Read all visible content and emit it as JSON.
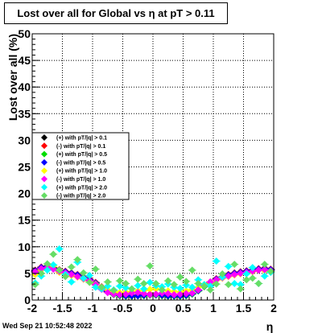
{
  "title": "Lost over all for Global vs    η at pT > 0.11",
  "timestamp": "Wed Sep 21 10:52:48 2022",
  "chart_data": {
    "type": "scatter",
    "title": "Lost over all for Global vs    η at pT > 0.11",
    "xlabel": "η",
    "ylabel": "Lost over all (%)",
    "xlim": [
      -2,
      2
    ],
    "ylim": [
      0,
      50
    ],
    "grid": true,
    "legend_position": "left-middle",
    "x_ticks": [
      "-2",
      "-1.5",
      "-1",
      "-0.5",
      "0",
      "0.5",
      "1",
      "1.5",
      "2"
    ],
    "y_ticks": [
      "0",
      "5",
      "10",
      "15",
      "20",
      "25",
      "30",
      "35",
      "40",
      "45",
      "50"
    ],
    "x": [
      -1.95,
      -1.85,
      -1.75,
      -1.65,
      -1.55,
      -1.45,
      -1.35,
      -1.25,
      -1.15,
      -1.05,
      -0.95,
      -0.85,
      -0.75,
      -0.65,
      -0.55,
      -0.45,
      -0.35,
      -0.25,
      -0.15,
      -0.05,
      0.05,
      0.15,
      0.25,
      0.35,
      0.45,
      0.55,
      0.65,
      0.75,
      0.85,
      0.95,
      1.05,
      1.15,
      1.25,
      1.35,
      1.45,
      1.55,
      1.65,
      1.75,
      1.85,
      1.95
    ],
    "series": [
      {
        "name": "(+) with pT/|q| > 0.1",
        "color": "#000000",
        "marker": "diamond",
        "values": [
          5.4,
          6.0,
          6.2,
          5.9,
          5.6,
          5.3,
          5.0,
          4.6,
          4.2,
          3.8,
          3.2,
          2.4,
          1.6,
          1.1,
          0.9,
          0.8,
          0.8,
          0.8,
          0.9,
          1.0,
          1.0,
          0.9,
          0.8,
          0.8,
          0.8,
          0.9,
          1.2,
          1.8,
          2.6,
          3.3,
          3.9,
          4.3,
          4.7,
          5.0,
          5.2,
          5.4,
          5.6,
          5.8,
          5.9,
          5.7
        ]
      },
      {
        "name": "(-) with pT/|q| > 0.1",
        "color": "#ff0000",
        "marker": "diamond",
        "values": [
          5.6,
          6.2,
          6.4,
          6.1,
          5.7,
          5.4,
          5.1,
          4.8,
          4.3,
          3.9,
          3.3,
          2.5,
          1.7,
          1.2,
          1.0,
          0.9,
          0.9,
          0.9,
          1.0,
          1.1,
          1.1,
          1.0,
          0.9,
          0.9,
          0.9,
          1.0,
          1.3,
          1.9,
          2.7,
          3.4,
          4.0,
          4.4,
          4.8,
          5.1,
          5.3,
          5.5,
          5.7,
          5.9,
          6.0,
          5.8
        ]
      },
      {
        "name": "(+) with pT/|q| > 0.5",
        "color": "#00dd00",
        "marker": "diamond",
        "values": [
          5.2,
          5.8,
          6.3,
          6.0,
          5.5,
          5.2,
          4.9,
          4.5,
          4.1,
          3.7,
          3.1,
          2.3,
          1.5,
          1.0,
          0.8,
          0.7,
          0.7,
          0.8,
          0.8,
          0.9,
          0.9,
          0.8,
          0.7,
          0.7,
          0.7,
          0.8,
          1.1,
          1.7,
          2.5,
          3.2,
          3.8,
          4.2,
          4.6,
          4.9,
          5.1,
          5.3,
          5.5,
          5.7,
          5.8,
          5.6
        ]
      },
      {
        "name": "(-) with pT/|q| > 0.5",
        "color": "#0000ff",
        "marker": "diamond",
        "values": [
          5.5,
          6.1,
          6.3,
          5.9,
          5.6,
          5.3,
          5.0,
          4.7,
          4.2,
          3.8,
          3.2,
          2.4,
          1.6,
          1.1,
          0.9,
          0.8,
          0.8,
          0.8,
          0.9,
          1.0,
          1.0,
          0.9,
          0.8,
          0.8,
          0.8,
          0.9,
          1.2,
          1.8,
          2.6,
          3.3,
          3.9,
          4.3,
          4.7,
          5.0,
          5.2,
          5.4,
          5.6,
          5.8,
          5.9,
          5.7
        ]
      },
      {
        "name": "(+) with pT/|q| > 1.0",
        "color": "#ffff00",
        "marker": "diamond",
        "values": [
          4.8,
          5.6,
          6.0,
          6.4,
          5.2,
          4.9,
          4.6,
          4.3,
          3.9,
          3.5,
          3.0,
          2.4,
          1.9,
          1.6,
          1.4,
          1.5,
          1.6,
          1.7,
          1.8,
          2.0,
          2.1,
          1.9,
          1.7,
          1.6,
          1.5,
          1.7,
          2.0,
          2.4,
          2.9,
          3.3,
          3.7,
          4.1,
          4.4,
          4.7,
          4.9,
          5.1,
          5.3,
          5.6,
          5.5,
          5.3
        ]
      },
      {
        "name": "(-) with pT/|q| > 1.0",
        "color": "#ff00ff",
        "marker": "diamond",
        "values": [
          5.3,
          5.9,
          6.1,
          5.8,
          5.4,
          5.1,
          4.8,
          4.4,
          4.0,
          3.6,
          2.9,
          2.0,
          1.4,
          1.1,
          1.0,
          1.1,
          1.3,
          1.4,
          1.2,
          1.0,
          1.1,
          1.3,
          1.2,
          1.0,
          1.1,
          1.2,
          1.3,
          1.9,
          2.7,
          3.4,
          3.8,
          4.2,
          4.5,
          4.8,
          5.0,
          5.2,
          5.4,
          5.6,
          5.7,
          5.5
        ]
      },
      {
        "name": "(+) with pT/|q| > 2.0",
        "color": "#00ffff",
        "marker": "diamond",
        "values": [
          3.2,
          4.5,
          5.6,
          6.6,
          9.6,
          4.8,
          3.4,
          7.1,
          4.1,
          4.6,
          2.4,
          2.1,
          2.6,
          1.9,
          2.6,
          2.3,
          2.1,
          2.7,
          2.1,
          3.3,
          2.7,
          2.5,
          3.0,
          2.4,
          2.2,
          2.8,
          2.4,
          3.8,
          2.9,
          2.6,
          7.3,
          4.3,
          6.3,
          3.1,
          2.9,
          4.9,
          6.1,
          3.1,
          4.5,
          5.2
        ]
      },
      {
        "name": "(-) with pT/|q| > 2.0",
        "color": "#66dd66",
        "marker": "diamond",
        "values": [
          2.9,
          5.0,
          6.8,
          8.6,
          5.6,
          4.4,
          6.2,
          7.6,
          5.1,
          3.3,
          5.8,
          2.4,
          3.4,
          1.8,
          3.6,
          3.1,
          2.1,
          3.9,
          3.1,
          6.4,
          3.1,
          1.9,
          3.6,
          2.9,
          4.3,
          3.5,
          5.6,
          3.1,
          2.6,
          1.9,
          3.0,
          4.9,
          2.9,
          6.7,
          2.1,
          3.8,
          4.1,
          3.1,
          6.7,
          5.4
        ]
      }
    ]
  }
}
